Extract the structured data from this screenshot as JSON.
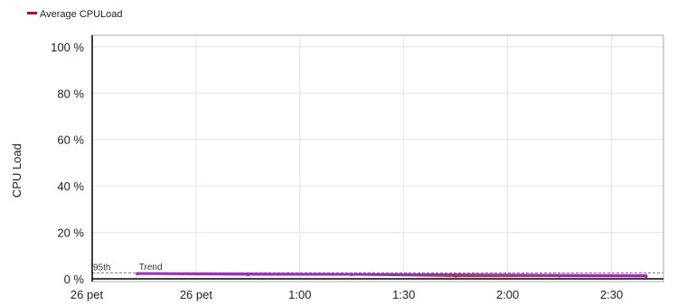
{
  "chart_data": {
    "type": "line",
    "legend": {
      "placement": "top-left",
      "label": "Average CPULoad",
      "color": "#e00000"
    },
    "ylabel": "CPU Load",
    "ylim": [
      0,
      105
    ],
    "yticks": [
      0,
      20,
      40,
      60,
      80,
      100
    ],
    "ytick_labels": [
      "0 %",
      "20 %",
      "40 %",
      "60 %",
      "80 %",
      "100 %"
    ],
    "x_range_min": [
      0,
      165
    ],
    "xticks_min": [
      0,
      30,
      60,
      90,
      120,
      150
    ],
    "xtick_labels": [
      "26 pet",
      "26 pet",
      "1:00",
      "1:30",
      "2:00",
      "2:30"
    ],
    "grid": true,
    "series": [
      {
        "name": "Average CPULoad",
        "color": "#e00000",
        "x_min": [
          13,
          45,
          75,
          105,
          135,
          160
        ],
        "values": [
          2.2,
          1.8,
          1.8,
          1.2,
          1.2,
          1.0
        ]
      }
    ],
    "trend": {
      "label": "Trend",
      "color": "#9b2fc4",
      "values_start_end": [
        2.3,
        1.4
      ]
    },
    "percentile": {
      "label": "95th",
      "value": 2.6,
      "color": "#777777"
    }
  }
}
